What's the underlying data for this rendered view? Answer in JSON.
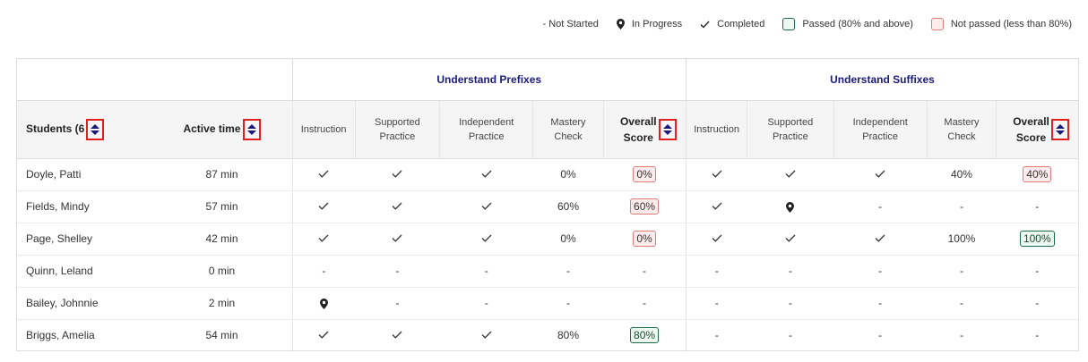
{
  "legend": {
    "not_started": "- Not Started",
    "in_progress": "In Progress",
    "completed": "Completed",
    "passed": "Passed (80% and above)",
    "not_passed": "Not passed (less than 80%)"
  },
  "groups": {
    "prefixes": "Understand Prefixes",
    "suffixes": "Understand Suffixes"
  },
  "headers": {
    "students": "Students (6",
    "active_time": "Active time",
    "instruction": "Instruction",
    "supported_1": "Supported",
    "supported_2": "Practice",
    "independent_1": "Independent",
    "independent_2": "Practice",
    "mastery_1": "Mastery",
    "mastery_2": "Check",
    "overall_1": "Overall",
    "overall_2": "Score"
  },
  "rows": [
    {
      "name": "Doyle, Patti",
      "time": "87 min",
      "p": [
        "check",
        "check",
        "check",
        "0%",
        {
          "badge": "0%",
          "status": "notpassed"
        }
      ],
      "s": [
        "check",
        "check",
        "check",
        "40%",
        {
          "badge": "40%",
          "status": "notpassed"
        }
      ]
    },
    {
      "name": "Fields, Mindy",
      "time": "57 min",
      "p": [
        "check",
        "check",
        "check",
        "60%",
        {
          "badge": "60%",
          "status": "notpassed"
        }
      ],
      "s": [
        "check",
        "pin",
        "-",
        "-",
        "-"
      ]
    },
    {
      "name": "Page, Shelley",
      "time": "42 min",
      "p": [
        "check",
        "check",
        "check",
        "0%",
        {
          "badge": "0%",
          "status": "notpassed"
        }
      ],
      "s": [
        "check",
        "check",
        "check",
        "100%",
        {
          "badge": "100%",
          "status": "passed"
        }
      ]
    },
    {
      "name": "Quinn, Leland",
      "time": "0 min",
      "p": [
        "-",
        "-",
        "-",
        "-",
        "-"
      ],
      "s": [
        "-",
        "-",
        "-",
        "-",
        "-"
      ]
    },
    {
      "name": "Bailey, Johnnie",
      "time": "2 min",
      "p": [
        "pin",
        "-",
        "-",
        "-",
        "-"
      ],
      "s": [
        "-",
        "-",
        "-",
        "-",
        "-"
      ]
    },
    {
      "name": "Briggs, Amelia",
      "time": "54 min",
      "p": [
        "check",
        "check",
        "check",
        "80%",
        {
          "badge": "80%",
          "status": "passed"
        }
      ],
      "s": [
        "-",
        "-",
        "-",
        "-",
        "-"
      ]
    }
  ],
  "colors": {
    "group_header": "#1a1a7a",
    "passed_border": "#1c6b4a",
    "not_passed_border": "#e07b7b",
    "sort_highlight": "#e02020"
  }
}
